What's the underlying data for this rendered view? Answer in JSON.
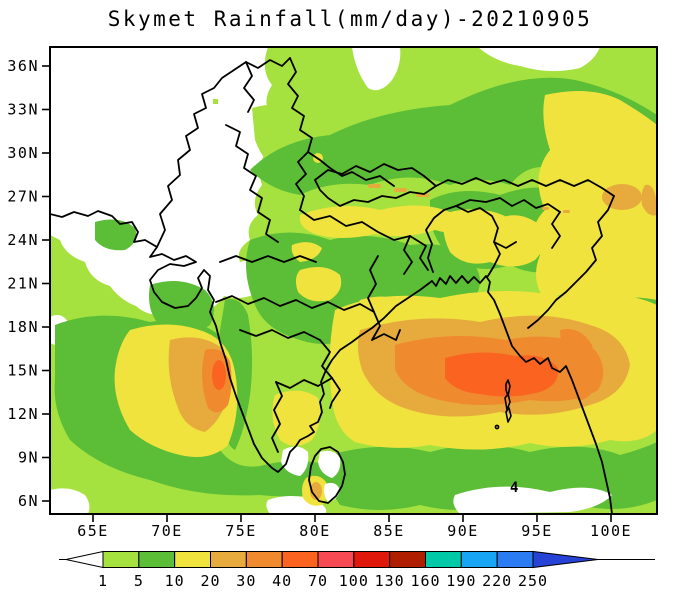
{
  "title": "Skymet Rainfall(mm/day)-20210905",
  "axes": {
    "y_ticks": [
      "36N",
      "33N",
      "30N",
      "27N",
      "24N",
      "21N",
      "18N",
      "15N",
      "12N",
      "9N",
      "6N"
    ],
    "x_ticks": [
      "65E",
      "70E",
      "75E",
      "80E",
      "85E",
      "90E",
      "95E",
      "100E"
    ]
  },
  "map": {
    "island_mark": "4",
    "region_colors": {
      "no_rain": "#ffffff",
      "rain_1_5": "#a6e23f",
      "rain_5_10": "#5cbd36",
      "rain_10_20": "#f0e33e",
      "rain_20_30": "#e7ab3d",
      "rain_30_40": "#f08a2f",
      "rain_40_70": "#fa6420"
    }
  },
  "colorbar": {
    "tick_labels": [
      "1",
      "5",
      "10",
      "20",
      "30",
      "40",
      "70",
      "100",
      "130",
      "160",
      "190",
      "220",
      "250"
    ],
    "below_min_color": "#ffffff",
    "above_max_color": "#2643d6",
    "segment_colors": [
      "#a6e23f",
      "#5cbd36",
      "#f0e33e",
      "#e7ab3d",
      "#f08a2f",
      "#fa6420",
      "#f84a55",
      "#e0180c",
      "#b01e00",
      "#00c9a7",
      "#18a5f3",
      "#2b7bf2"
    ]
  }
}
